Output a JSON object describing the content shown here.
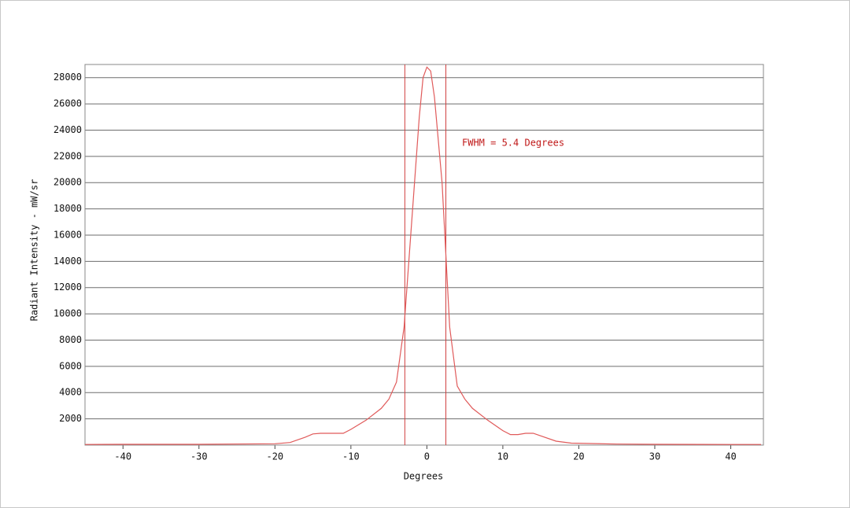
{
  "chart_data": {
    "type": "line",
    "xlabel": "Degrees",
    "ylabel": "Radiant Intensity - mW/sr",
    "annotation": "FWHM =  5.4 Degrees",
    "x": [
      -45,
      -40,
      -30,
      -20,
      -18,
      -16,
      -15,
      -14,
      -11,
      -10,
      -8,
      -6,
      -5,
      -4,
      -3,
      -2,
      -1,
      -0.5,
      0,
      0.5,
      1,
      2,
      3,
      4,
      5,
      6,
      8,
      10,
      11,
      12,
      13,
      14,
      15,
      17,
      19,
      25,
      30,
      40,
      44
    ],
    "series": [
      {
        "color": "#e05a5a",
        "values": [
          50,
          60,
          60,
          100,
          200,
          600,
          850,
          900,
          900,
          1200,
          1900,
          2800,
          3500,
          4800,
          9000,
          17000,
          25000,
          28000,
          28800,
          28500,
          26500,
          20000,
          9000,
          4500,
          3500,
          2800,
          1900,
          1100,
          800,
          800,
          900,
          900,
          700,
          300,
          150,
          80,
          60,
          50,
          50
        ]
      }
    ],
    "fwhm_lines": [
      -2.9,
      2.5
    ],
    "xlim": [
      -45,
      44.3
    ],
    "ylim": [
      0,
      29000
    ],
    "xticks": [
      -40,
      -30,
      -20,
      -10,
      0,
      10,
      20,
      30,
      40
    ],
    "yticks": [
      2000,
      4000,
      6000,
      8000,
      10000,
      12000,
      14000,
      16000,
      18000,
      20000,
      22000,
      24000,
      26000,
      28000
    ],
    "grid": true
  }
}
